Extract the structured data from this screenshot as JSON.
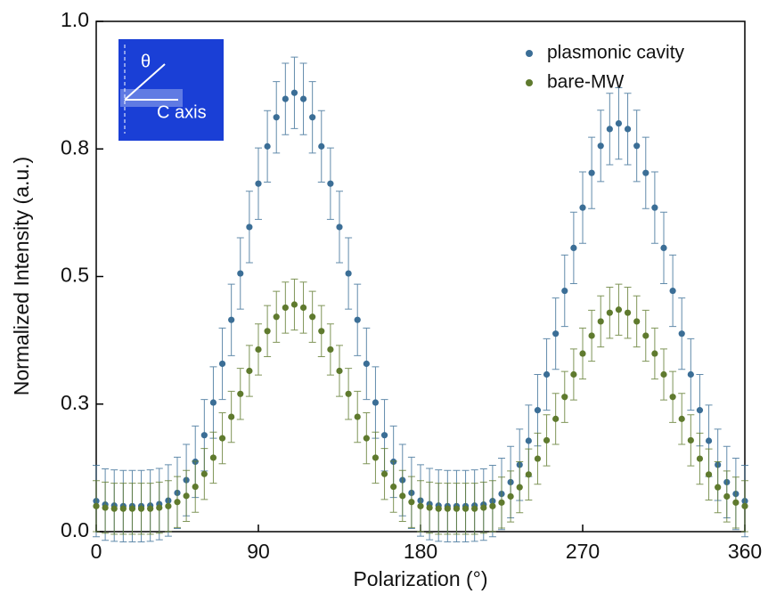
{
  "chart_data": {
    "type": "scatter",
    "xlabel": "Polarization (°)",
    "ylabel": "Normalized Intensity (a.u.)",
    "inset": {
      "angle_label": "θ",
      "axis_label": "C axis"
    },
    "xlim": [
      0,
      360
    ],
    "xticks": [
      0,
      90,
      180,
      270,
      360
    ],
    "ylim": [
      0,
      1
    ],
    "yticks": [
      {
        "value": 0,
        "label": "0.0"
      },
      {
        "value": 0.25,
        "label": "0.3"
      },
      {
        "value": 0.5,
        "label": "0.5"
      },
      {
        "value": 0.75,
        "label": "0.8"
      },
      {
        "value": 1,
        "label": "1.0"
      }
    ],
    "legend": "upper right",
    "x": [
      0,
      5,
      10,
      15,
      20,
      25,
      30,
      35,
      40,
      45,
      50,
      55,
      60,
      65,
      70,
      75,
      80,
      85,
      90,
      95,
      100,
      105,
      110,
      115,
      120,
      125,
      130,
      135,
      140,
      145,
      150,
      155,
      160,
      165,
      170,
      175,
      180,
      185,
      190,
      195,
      200,
      205,
      210,
      215,
      220,
      225,
      230,
      235,
      240,
      245,
      250,
      255,
      260,
      265,
      270,
      275,
      280,
      285,
      290,
      295,
      300,
      305,
      310,
      315,
      320,
      325,
      330,
      335,
      340,
      345,
      350,
      355,
      360
    ],
    "series": [
      {
        "name": "plasmonic cavity",
        "color": "#3b6e96",
        "error": 0.07,
        "values": [
          0.06,
          0.053,
          0.051,
          0.05,
          0.05,
          0.05,
          0.051,
          0.054,
          0.061,
          0.076,
          0.101,
          0.137,
          0.189,
          0.253,
          0.329,
          0.415,
          0.506,
          0.597,
          0.682,
          0.755,
          0.812,
          0.848,
          0.86,
          0.848,
          0.812,
          0.755,
          0.682,
          0.597,
          0.506,
          0.415,
          0.329,
          0.253,
          0.189,
          0.137,
          0.101,
          0.076,
          0.061,
          0.054,
          0.051,
          0.05,
          0.05,
          0.05,
          0.051,
          0.053,
          0.06,
          0.074,
          0.097,
          0.131,
          0.178,
          0.238,
          0.308,
          0.388,
          0.472,
          0.556,
          0.635,
          0.703,
          0.756,
          0.789,
          0.8,
          0.789,
          0.756,
          0.703,
          0.635,
          0.556,
          0.472,
          0.388,
          0.308,
          0.238,
          0.178,
          0.131,
          0.097,
          0.074,
          0.06
        ]
      },
      {
        "name": "bare-MW",
        "color": "#5f7a2e",
        "error": 0.05,
        "values": [
          0.05,
          0.047,
          0.045,
          0.045,
          0.045,
          0.045,
          0.045,
          0.047,
          0.05,
          0.058,
          0.07,
          0.088,
          0.113,
          0.145,
          0.183,
          0.225,
          0.27,
          0.315,
          0.357,
          0.393,
          0.421,
          0.439,
          0.445,
          0.439,
          0.421,
          0.393,
          0.357,
          0.315,
          0.27,
          0.225,
          0.183,
          0.145,
          0.113,
          0.088,
          0.07,
          0.058,
          0.05,
          0.047,
          0.045,
          0.045,
          0.045,
          0.045,
          0.045,
          0.047,
          0.05,
          0.057,
          0.069,
          0.087,
          0.112,
          0.143,
          0.179,
          0.221,
          0.264,
          0.308,
          0.349,
          0.384,
          0.412,
          0.429,
          0.435,
          0.429,
          0.412,
          0.384,
          0.349,
          0.308,
          0.264,
          0.221,
          0.179,
          0.143,
          0.112,
          0.087,
          0.069,
          0.057,
          0.05
        ]
      }
    ]
  }
}
